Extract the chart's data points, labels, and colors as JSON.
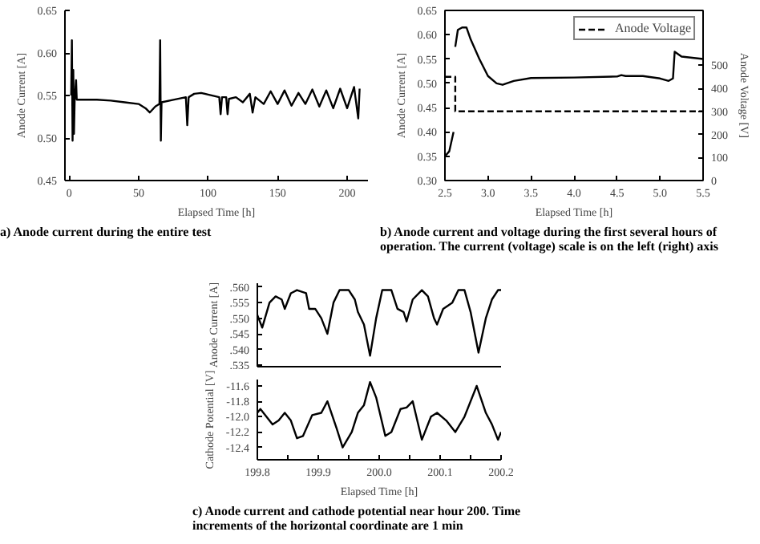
{
  "chart_data": [
    {
      "type": "line",
      "title": "a) Anode current during the entire test",
      "xlabel": "Elapsed Time [h]",
      "ylabel": "Anode Current [A]",
      "xlim": [
        -3,
        215
      ],
      "xticks": [
        0,
        50,
        100,
        150,
        200
      ],
      "ylim": [
        0.45,
        0.65
      ],
      "yticks": [
        {
          "value": 0.45,
          "label": "0.45"
        },
        {
          "value": 0.5,
          "label": "0.50"
        },
        {
          "value": 0.55,
          "label": "0.55"
        },
        {
          "value": 0.6,
          "label": "0.60"
        },
        {
          "value": 0.65,
          "label": "0.65"
        }
      ],
      "line_style": "solid",
      "series": [
        {
          "color": "#000000",
          "x": [
            1.5,
            2,
            2.5,
            3,
            3.5,
            4,
            5,
            5.5,
            10,
            20,
            30,
            40,
            50,
            55,
            58,
            62,
            65,
            65.5,
            66,
            66.5,
            75,
            84,
            85,
            86,
            90,
            95,
            100,
            108,
            109,
            110,
            113,
            114,
            115,
            120,
            125,
            130,
            132,
            134,
            140,
            145,
            150,
            155,
            160,
            165,
            170,
            175,
            180,
            185,
            190,
            195,
            200,
            205,
            208,
            209
          ],
          "values": [
            0.55,
            0.615,
            0.497,
            0.58,
            0.505,
            0.545,
            0.568,
            0.545,
            0.545,
            0.545,
            0.544,
            0.542,
            0.54,
            0.535,
            0.53,
            0.537,
            0.54,
            0.615,
            0.497,
            0.542,
            0.545,
            0.548,
            0.515,
            0.548,
            0.552,
            0.553,
            0.551,
            0.548,
            0.528,
            0.548,
            0.548,
            0.528,
            0.546,
            0.548,
            0.542,
            0.552,
            0.53,
            0.548,
            0.54,
            0.555,
            0.54,
            0.556,
            0.538,
            0.553,
            0.54,
            0.557,
            0.537,
            0.556,
            0.535,
            0.558,
            0.535,
            0.56,
            0.523,
            0.558
          ]
        }
      ]
    },
    {
      "type": "line",
      "title": "b) Anode current and voltage during the first several hours of operation. The current (voltage) scale is on the left (right) axis",
      "xlabel": "Elapsed Time [h]",
      "ylabel": "Anode Current [A]",
      "y2label": "Anode Voltage [V]",
      "xlim": [
        2.5,
        5.5
      ],
      "xticks": [
        2.5,
        {
          "value": 3,
          "label": "3.0"
        },
        3.5,
        {
          "value": 4,
          "label": "4.0"
        },
        4.5,
        {
          "value": 5,
          "label": "5.0"
        },
        5.5
      ],
      "ylim": [
        0.3,
        0.65
      ],
      "yticks": [
        {
          "value": 0.3,
          "label": "0.30"
        },
        {
          "value": 0.35,
          "label": "0.35"
        },
        {
          "value": 0.4,
          "label": "0.40"
        },
        {
          "value": 0.45,
          "label": "0.45"
        },
        {
          "value": 0.5,
          "label": "0.50"
        },
        {
          "value": 0.55,
          "label": "0.55"
        },
        {
          "value": 0.6,
          "label": "0.60"
        },
        {
          "value": 0.65,
          "label": "0.65"
        }
      ],
      "y2lim": [
        0,
        738
      ],
      "y2ticks": [
        0,
        100,
        200,
        300,
        400,
        500
      ],
      "legend": "top right",
      "series": [
        {
          "color": "#000000",
          "line_style": "solid",
          "x": [
            2.5,
            2.55,
            2.6,
            2.61,
            2.62,
            2.65,
            2.7,
            2.75,
            2.8,
            2.9,
            3.0,
            3.1,
            3.17,
            3.3,
            3.5,
            4.0,
            4.5,
            4.55,
            4.6,
            4.8,
            5.0,
            5.1,
            5.15,
            5.17,
            5.25,
            5.5
          ],
          "values": [
            0.35,
            0.36,
            0.4,
            null,
            0.575,
            0.61,
            0.615,
            0.615,
            0.59,
            0.55,
            0.515,
            0.5,
            0.497,
            0.505,
            0.511,
            0.512,
            0.514,
            0.517,
            0.515,
            0.515,
            0.51,
            0.505,
            0.51,
            0.565,
            0.555,
            0.55
          ]
        },
        {
          "name": "Anode Voltage",
          "color": "#000000",
          "line_style": "dashed",
          "axis": "y2",
          "x": [
            2.5,
            2.62,
            2.62,
            5.5
          ],
          "values": [
            450,
            450,
            300,
            300
          ]
        }
      ]
    },
    {
      "type": "line",
      "ylabel": "Anode Current [A]",
      "xlim": [
        199.8,
        200.2
      ],
      "ylim": [
        0.5345,
        0.5612
      ],
      "yticks": [
        {
          "value": 0.535,
          "label": ".535"
        },
        {
          "value": 0.54,
          "label": ".540"
        },
        {
          "value": 0.545,
          "label": ".545"
        },
        {
          "value": 0.55,
          "label": ".550"
        },
        {
          "value": 0.555,
          "label": ".555"
        },
        {
          "value": 0.56,
          "label": ".560"
        }
      ],
      "tick_labels": "y",
      "series": [
        {
          "color": "#000000",
          "x": [
            199.8,
            199.808,
            199.82,
            199.83,
            199.84,
            199.845,
            199.855,
            199.865,
            199.88,
            199.885,
            199.895,
            199.905,
            199.915,
            199.925,
            199.935,
            199.95,
            199.96,
            199.965,
            199.975,
            199.985,
            199.995,
            200.005,
            200.02,
            200.03,
            200.04,
            200.045,
            200.055,
            200.07,
            200.08,
            200.09,
            200.095,
            200.105,
            200.12,
            200.13,
            200.14,
            200.15,
            200.163,
            200.175,
            200.185,
            200.195,
            200.2
          ],
          "values": [
            0.551,
            0.547,
            0.555,
            0.557,
            0.556,
            0.553,
            0.558,
            0.559,
            0.558,
            0.553,
            0.553,
            0.55,
            0.545,
            0.555,
            0.559,
            0.559,
            0.556,
            0.552,
            0.548,
            0.538,
            0.55,
            0.559,
            0.559,
            0.553,
            0.552,
            0.549,
            0.556,
            0.559,
            0.557,
            0.55,
            0.548,
            0.553,
            0.555,
            0.559,
            0.559,
            0.552,
            0.539,
            0.55,
            0.556,
            0.559,
            0.559
          ]
        }
      ]
    },
    {
      "type": "line",
      "title": "c) Anode current and cathode potential near hour 200. Time increments of the horizontal coordinate are 1 min",
      "xlabel": "Elapsed Time [h]",
      "ylabel": "Cathode Potential [V]",
      "xlim": [
        199.8,
        200.2
      ],
      "xticks": [
        199.8,
        {
          "value": 199.85,
          "label": null
        },
        199.9,
        {
          "value": 199.95,
          "label": null
        },
        {
          "value": 200.0,
          "label": "200.0"
        },
        {
          "value": 200.05,
          "label": null
        },
        200.1,
        {
          "value": 200.15,
          "label": null
        },
        200.2
      ],
      "ylim": [
        -12.56,
        -11.517
      ],
      "yticks": [
        -12.4,
        -12.2,
        {
          "value": -12.0,
          "label": "-12.0"
        },
        -11.8,
        -11.6
      ],
      "series": [
        {
          "color": "#000000",
          "x": [
            199.8,
            199.805,
            199.825,
            199.835,
            199.845,
            199.855,
            199.865,
            199.875,
            199.89,
            199.905,
            199.915,
            199.93,
            199.94,
            199.955,
            199.965,
            199.975,
            199.985,
            199.995,
            200.01,
            200.02,
            200.035,
            200.045,
            200.055,
            200.07,
            200.085,
            200.095,
            200.11,
            200.125,
            200.14,
            200.16,
            200.175,
            200.185,
            200.195,
            200.2
          ],
          "values": [
            -11.95,
            -11.9,
            -12.1,
            -12.05,
            -11.95,
            -12.05,
            -12.28,
            -12.25,
            -11.98,
            -11.95,
            -11.8,
            -12.15,
            -12.4,
            -12.2,
            -11.95,
            -11.85,
            -11.55,
            -11.75,
            -12.25,
            -12.2,
            -11.9,
            -11.88,
            -11.8,
            -12.3,
            -12.0,
            -11.95,
            -12.05,
            -12.2,
            -12.0,
            -11.6,
            -11.95,
            -12.1,
            -12.3,
            -12.2
          ]
        }
      ]
    }
  ]
}
